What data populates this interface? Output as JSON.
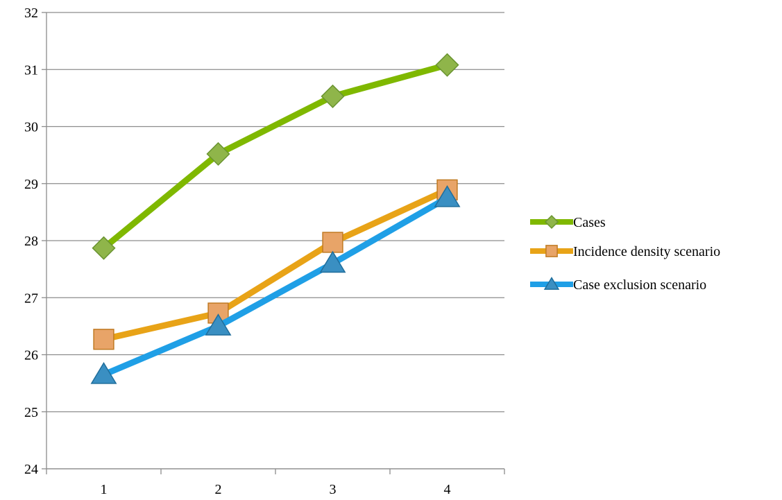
{
  "chart_data": {
    "type": "line",
    "title": "",
    "xlabel": "",
    "ylabel": "",
    "categories": [
      "1",
      "2",
      "3",
      "4"
    ],
    "ylim": [
      24,
      32
    ],
    "yticks": [
      24,
      25,
      26,
      27,
      28,
      29,
      30,
      31,
      32
    ],
    "grid": true,
    "legend_position": "right",
    "series": [
      {
        "name": "Cases",
        "values": [
          27.87,
          29.52,
          30.53,
          31.08
        ],
        "color": "#7fb800",
        "marker": "diamond",
        "marker_fill": "#8fb54a",
        "marker_stroke": "#6a9430"
      },
      {
        "name": "Incidence density scenario",
        "values": [
          26.27,
          26.73,
          27.97,
          28.89
        ],
        "color": "#e8a317",
        "marker": "square",
        "marker_fill": "#e8a468",
        "marker_stroke": "#c07a22"
      },
      {
        "name": "Case exclusion scenario",
        "values": [
          25.65,
          26.5,
          27.6,
          28.75
        ],
        "color": "#1f9fe6",
        "marker": "triangle",
        "marker_fill": "#3a8fc2",
        "marker_stroke": "#1f6d9b"
      }
    ]
  }
}
